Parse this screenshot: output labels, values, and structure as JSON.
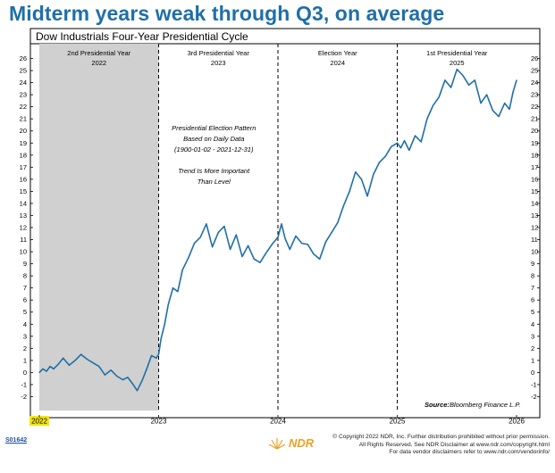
{
  "headline": "Midterm years weak through Q3, on average",
  "chart_data": {
    "type": "line",
    "title": "Dow Industrials Four-Year Presidential Cycle",
    "xlim": [
      2022,
      2026
    ],
    "ylim": [
      -3,
      27
    ],
    "y_ticks": [
      -2,
      -1,
      0,
      1,
      2,
      3,
      4,
      5,
      6,
      7,
      8,
      9,
      10,
      11,
      12,
      13,
      14,
      15,
      16,
      17,
      18,
      19,
      20,
      21,
      22,
      23,
      24,
      25,
      26
    ],
    "x_tick_labels": [
      "2022",
      "2023",
      "2024",
      "2025",
      "2026"
    ],
    "x_tick_values": [
      2022,
      2023,
      2024,
      2025,
      2026
    ],
    "highlighted_x_label": "2022",
    "grid": false,
    "shaded_region": {
      "x": [
        2022,
        2023
      ],
      "color": "#d0d0d0"
    },
    "dividers": [
      2023,
      2024,
      2025
    ],
    "period_labels": [
      {
        "line1": "2nd Presidential Year",
        "line2": "2022"
      },
      {
        "line1": "3rd Presidential Year",
        "line2": "2023"
      },
      {
        "line1": "Election Year",
        "line2": "2024"
      },
      {
        "line1": "1st Presidential Year",
        "line2": "2025"
      }
    ],
    "annotation": [
      "Presidential Election Pattern",
      "Based on Daily Data",
      "(1900-01-02 - 2021-12-31)",
      "",
      "Trend Is More Important",
      "Than Level"
    ],
    "source_label": "Source:",
    "source_text": "Bloomberg Finance L.P.",
    "line_color": "#1f6fa8",
    "series": [
      {
        "x": [
          2022.0,
          2022.03,
          2022.06,
          2022.09,
          2022.12,
          2022.16,
          2022.2,
          2022.25,
          2022.3,
          2022.35,
          2022.4,
          2022.45,
          2022.5,
          2022.55,
          2022.6,
          2022.65,
          2022.7,
          2022.74,
          2022.78,
          2022.82,
          2022.86,
          2022.9,
          2022.94,
          2022.98,
          2023.0,
          2023.02,
          2023.05,
          2023.08,
          2023.12,
          2023.16,
          2023.2,
          2023.25,
          2023.3,
          2023.35,
          2023.4,
          2023.45,
          2023.5,
          2023.55,
          2023.6,
          2023.65,
          2023.7,
          2023.75,
          2023.8,
          2023.85,
          2023.9,
          2023.95,
          2024.0,
          2024.03,
          2024.06,
          2024.1,
          2024.15,
          2024.2,
          2024.25,
          2024.3,
          2024.35,
          2024.4,
          2024.45,
          2024.5,
          2024.55,
          2024.6,
          2024.65,
          2024.7,
          2024.75,
          2024.8,
          2024.85,
          2024.9,
          2024.95,
          2025.0,
          2025.03,
          2025.06,
          2025.1,
          2025.15,
          2025.2,
          2025.25,
          2025.3,
          2025.35,
          2025.4,
          2025.45,
          2025.5,
          2025.55,
          2025.6,
          2025.65,
          2025.7,
          2025.75,
          2025.8,
          2025.85,
          2025.9,
          2025.94,
          2025.97,
          2026.0
        ],
        "y": [
          0.0,
          0.3,
          0.1,
          0.5,
          0.3,
          0.7,
          1.2,
          0.6,
          1.0,
          1.5,
          1.1,
          0.8,
          0.5,
          -0.2,
          0.2,
          -0.3,
          -0.6,
          -0.4,
          -0.9,
          -1.5,
          -0.7,
          0.3,
          1.4,
          1.2,
          1.5,
          2.8,
          4.0,
          5.6,
          7.0,
          6.7,
          8.5,
          9.5,
          10.7,
          11.2,
          12.3,
          10.4,
          11.6,
          12.1,
          10.2,
          11.4,
          9.6,
          10.5,
          9.4,
          9.1,
          9.9,
          10.6,
          11.2,
          12.3,
          11.1,
          10.2,
          11.3,
          10.7,
          10.6,
          9.8,
          9.4,
          10.8,
          11.6,
          12.4,
          13.8,
          15.0,
          16.6,
          16.0,
          14.6,
          16.4,
          17.4,
          17.9,
          18.7,
          19.0,
          18.6,
          19.2,
          18.4,
          19.6,
          19.1,
          21.0,
          22.1,
          22.8,
          24.2,
          23.6,
          25.1,
          24.6,
          23.8,
          24.2,
          22.3,
          23.0,
          21.7,
          21.2,
          22.3,
          21.8,
          23.2,
          24.2
        ]
      }
    ]
  },
  "footer": {
    "id": "S01642",
    "logo_text": "NDR",
    "copyright_lines": [
      "© Copyright 2022 NDR, Inc. Further distribution prohibited without prior permission.",
      "All Rights Reserved. See NDR Disclaimer at www.ndr.com/copyright.html",
      "For data vendor disclaimers refer to www.ndr.com/vendorinfo/"
    ]
  }
}
